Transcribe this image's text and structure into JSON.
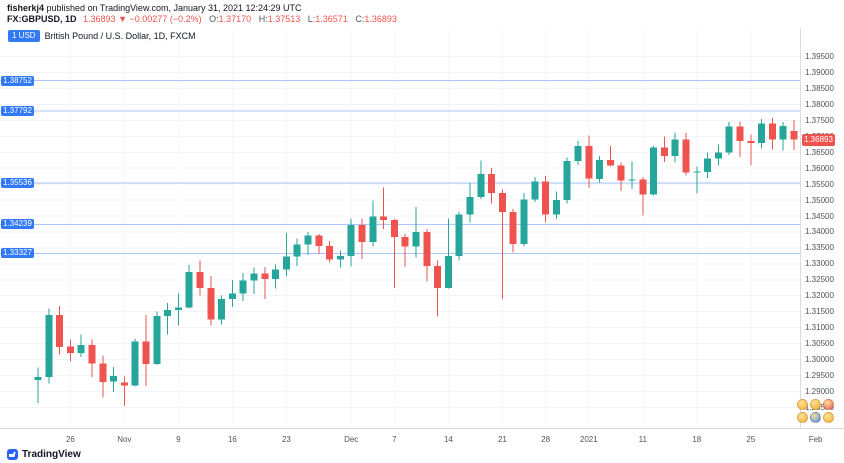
{
  "header": {
    "username": "fisherkj4",
    "published_text": " published on TradingView.com, January 31, 2021 12:24:29 UTC",
    "symbol": "FX:GBPUSD, 1D",
    "last_price": "1.36893",
    "direction_arrow": "▼",
    "change_text": "−0.00277 (−0.2%)",
    "o_label": "O:",
    "o_value": "1.37170",
    "h_label": "H:",
    "h_value": "1.37513",
    "l_label": "L:",
    "l_value": "1.36571",
    "c_label": "C:",
    "c_value": "1.36893"
  },
  "legend": {
    "badge": "1 USD",
    "title": "British Pound / U.S. Dollar, 1D, FXCM"
  },
  "footer": {
    "logo_text": "TradingView"
  },
  "stickers": [
    "#f6a821",
    "#f6a821",
    "#ef5350",
    "#f6a821",
    "#2f80ed",
    "#f6a821"
  ],
  "chart_data": {
    "type": "candlestick",
    "title": "British Pound / U.S. Dollar, 1D, FXCM",
    "symbol": "GBPUSD",
    "timeframe": "1D",
    "exchange": "FXCM",
    "xlabel": "",
    "ylabel": "",
    "grid": true,
    "legend_position": "top-left",
    "ylim": [
      1.2785,
      1.404
    ],
    "price_ticks": [
      "1.39500",
      "1.39000",
      "1.38500",
      "1.38000",
      "1.37500",
      "1.37000",
      "1.36500",
      "1.36000",
      "1.35500",
      "1.35000",
      "1.34500",
      "1.34000",
      "1.33500",
      "1.33000",
      "1.32500",
      "1.32000",
      "1.31500",
      "1.31000",
      "1.30500",
      "1.30000",
      "1.29500",
      "1.29000",
      "1.28500"
    ],
    "time_ticks": [
      {
        "i": 3,
        "label": "26"
      },
      {
        "i": 8,
        "label": "Nov"
      },
      {
        "i": 13,
        "label": "9"
      },
      {
        "i": 18,
        "label": "16"
      },
      {
        "i": 23,
        "label": "23"
      },
      {
        "i": 29,
        "label": "Dec"
      },
      {
        "i": 33,
        "label": "7"
      },
      {
        "i": 38,
        "label": "14"
      },
      {
        "i": 43,
        "label": "21"
      },
      {
        "i": 47,
        "label": "28"
      },
      {
        "i": 51,
        "label": "2021"
      },
      {
        "i": 56,
        "label": "11"
      },
      {
        "i": 61,
        "label": "18"
      },
      {
        "i": 66,
        "label": "25"
      },
      {
        "i": 72,
        "label": "Feb"
      }
    ],
    "levels": [
      {
        "price": 1.38752,
        "label": "1.38752"
      },
      {
        "price": 1.37792,
        "label": "1.37792"
      },
      {
        "price": 1.35536,
        "label": "1.35536"
      },
      {
        "price": 1.34239,
        "label": "1.34239"
      },
      {
        "price": 1.33327,
        "label": "1.33327"
      }
    ],
    "last_price": {
      "value": 1.36893,
      "label": "1.36893"
    },
    "colors": {
      "up": "#26a69a",
      "down": "#ef5350",
      "level_line": "#a9c7fb",
      "level_label_bg": "#3179f7",
      "last_price_bg": "#ef5350",
      "grid": "#f0f3fa"
    },
    "candles": [
      [
        1.2935,
        1.2975,
        1.2863,
        1.2945
      ],
      [
        1.2945,
        1.316,
        1.2925,
        1.314
      ],
      [
        1.314,
        1.3168,
        1.3015,
        1.304
      ],
      [
        1.304,
        1.3063,
        1.2993,
        1.302
      ],
      [
        1.302,
        1.3079,
        1.3008,
        1.3045
      ],
      [
        1.3045,
        1.3062,
        1.2945,
        1.2987
      ],
      [
        1.2987,
        1.3012,
        1.2881,
        1.293
      ],
      [
        1.293,
        1.2976,
        1.2898,
        1.2948
      ],
      [
        1.2928,
        1.2946,
        1.2854,
        1.2918
      ],
      [
        1.2918,
        1.3065,
        1.2915,
        1.3056
      ],
      [
        1.3056,
        1.314,
        1.2916,
        1.2985
      ],
      [
        1.2985,
        1.315,
        1.2983,
        1.3137
      ],
      [
        1.3137,
        1.3177,
        1.3078,
        1.3155
      ],
      [
        1.3155,
        1.3207,
        1.3106,
        1.3163
      ],
      [
        1.3163,
        1.3297,
        1.316,
        1.3274
      ],
      [
        1.3274,
        1.331,
        1.32,
        1.3224
      ],
      [
        1.3224,
        1.3262,
        1.3106,
        1.3125
      ],
      [
        1.3125,
        1.3201,
        1.311,
        1.319
      ],
      [
        1.319,
        1.325,
        1.3165,
        1.3207
      ],
      [
        1.3207,
        1.3272,
        1.3183,
        1.3248
      ],
      [
        1.3248,
        1.3289,
        1.3205,
        1.3269
      ],
      [
        1.3269,
        1.329,
        1.319,
        1.3253
      ],
      [
        1.3253,
        1.3298,
        1.3222,
        1.3282
      ],
      [
        1.3282,
        1.3397,
        1.3262,
        1.3323
      ],
      [
        1.3323,
        1.338,
        1.3294,
        1.336
      ],
      [
        1.336,
        1.34,
        1.3328,
        1.3389
      ],
      [
        1.3389,
        1.3393,
        1.3331,
        1.3356
      ],
      [
        1.3356,
        1.3372,
        1.3305,
        1.3313
      ],
      [
        1.3313,
        1.3342,
        1.3288,
        1.3324
      ],
      [
        1.3324,
        1.3442,
        1.3291,
        1.3422
      ],
      [
        1.3422,
        1.3442,
        1.3315,
        1.3369
      ],
      [
        1.3369,
        1.3499,
        1.3354,
        1.3448
      ],
      [
        1.3448,
        1.354,
        1.341,
        1.3437
      ],
      [
        1.3437,
        1.3441,
        1.3224,
        1.3385
      ],
      [
        1.3385,
        1.3394,
        1.329,
        1.3354
      ],
      [
        1.3354,
        1.3478,
        1.332,
        1.34
      ],
      [
        1.34,
        1.341,
        1.3245,
        1.3294
      ],
      [
        1.3294,
        1.331,
        1.3135,
        1.3224
      ],
      [
        1.3224,
        1.3443,
        1.3223,
        1.3325
      ],
      [
        1.3325,
        1.3465,
        1.331,
        1.3455
      ],
      [
        1.3455,
        1.3554,
        1.343,
        1.351
      ],
      [
        1.351,
        1.3625,
        1.3504,
        1.3582
      ],
      [
        1.3582,
        1.36,
        1.3489,
        1.3523
      ],
      [
        1.3523,
        1.3533,
        1.319,
        1.3462
      ],
      [
        1.3462,
        1.3472,
        1.3335,
        1.3362
      ],
      [
        1.3362,
        1.3522,
        1.3354,
        1.3502
      ],
      [
        1.3502,
        1.3573,
        1.3494,
        1.3558
      ],
      [
        1.3558,
        1.3575,
        1.343,
        1.3455
      ],
      [
        1.3455,
        1.3527,
        1.344,
        1.35
      ],
      [
        1.35,
        1.3634,
        1.349,
        1.3622
      ],
      [
        1.3622,
        1.3686,
        1.361,
        1.367
      ],
      [
        1.367,
        1.3703,
        1.3538,
        1.3567
      ],
      [
        1.3567,
        1.3638,
        1.3555,
        1.3626
      ],
      [
        1.3626,
        1.367,
        1.3605,
        1.3609
      ],
      [
        1.3609,
        1.3618,
        1.3528,
        1.3561
      ],
      [
        1.3561,
        1.3621,
        1.3535,
        1.3565
      ],
      [
        1.3565,
        1.3573,
        1.3451,
        1.3518
      ],
      [
        1.3518,
        1.367,
        1.3515,
        1.3665
      ],
      [
        1.3665,
        1.37,
        1.362,
        1.3638
      ],
      [
        1.3638,
        1.3712,
        1.3618,
        1.369
      ],
      [
        1.369,
        1.371,
        1.3578,
        1.3587
      ],
      [
        1.3587,
        1.3606,
        1.352,
        1.3589
      ],
      [
        1.3589,
        1.365,
        1.357,
        1.363
      ],
      [
        1.363,
        1.3674,
        1.3608,
        1.365
      ],
      [
        1.365,
        1.3745,
        1.3642,
        1.3731
      ],
      [
        1.3731,
        1.3746,
        1.3636,
        1.3685
      ],
      [
        1.3685,
        1.3706,
        1.3609,
        1.3679
      ],
      [
        1.3679,
        1.3754,
        1.3662,
        1.3741
      ],
      [
        1.3741,
        1.3758,
        1.3659,
        1.369
      ],
      [
        1.369,
        1.3745,
        1.3655,
        1.3733
      ],
      [
        1.3717,
        1.37513,
        1.36571,
        1.36893
      ]
    ]
  }
}
